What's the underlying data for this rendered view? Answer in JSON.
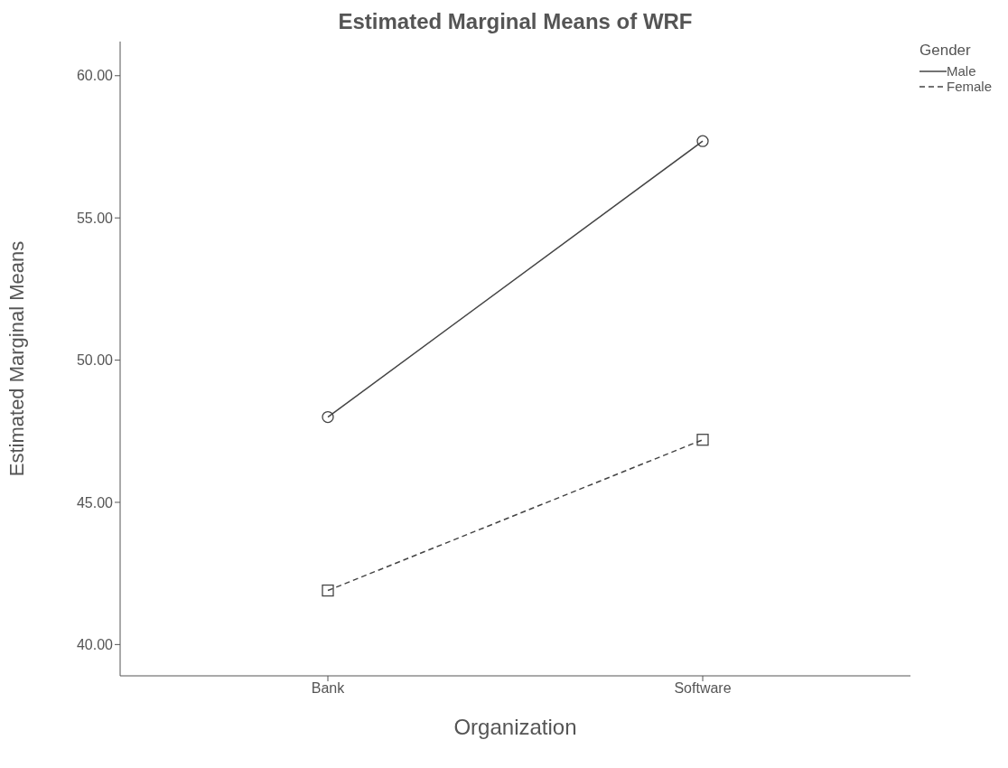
{
  "chart_data": {
    "type": "line",
    "title": "Estimated Marginal Means of WRF",
    "xlabel": "Organization",
    "ylabel": "Estimated Marginal Means",
    "legend_title": "Gender",
    "categories": [
      "Bank",
      "Software"
    ],
    "series": [
      {
        "name": "Male",
        "color": "#444444",
        "values": [
          48.0,
          57.7
        ],
        "marker": "circle",
        "line_style": "solid"
      },
      {
        "name": "Female",
        "color": "#444444",
        "values": [
          41.9,
          47.2
        ],
        "marker": "square",
        "line_style": "dashed"
      }
    ],
    "ylim": [
      38.9,
      61.2
    ],
    "yticks": [
      {
        "value": 40,
        "label": "40.00"
      },
      {
        "value": 45,
        "label": "45.00"
      },
      {
        "value": 50,
        "label": "50.00"
      },
      {
        "value": 55,
        "label": "55.00"
      },
      {
        "value": 60,
        "label": "60.00"
      }
    ],
    "grid": false,
    "legend": "top right"
  }
}
